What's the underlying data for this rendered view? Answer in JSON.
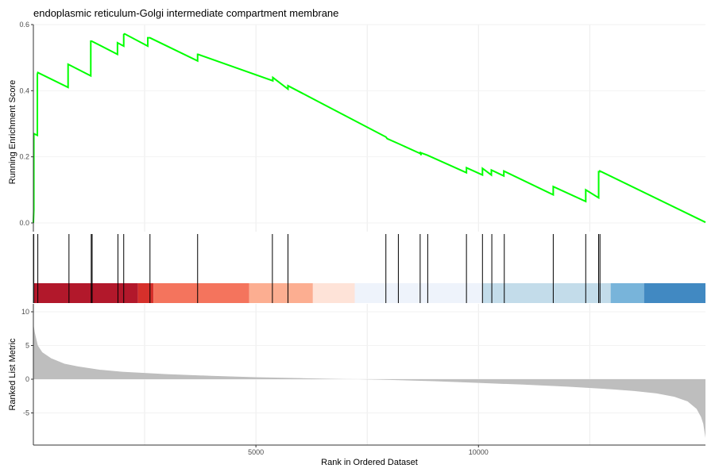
{
  "chart_data": {
    "type": "line",
    "title": "endoplasmic reticulum-Golgi intermediate compartment membrane",
    "xlabel": "Rank in Ordered Dataset",
    "xlim": [
      0,
      15100
    ],
    "x_ticks": [
      5000,
      10000
    ],
    "x_tick_labels": [
      "5000",
      "10000"
    ],
    "grid": true,
    "enrichment": {
      "ylabel": "Running Enrichment Score",
      "ylim": [
        0,
        0.6
      ],
      "y_ticks": [
        0,
        0.2,
        0.4,
        0.6
      ],
      "y_tick_labels": [
        "0.0",
        "0.2",
        "0.4",
        "0.6"
      ],
      "line_color": "#00FF00",
      "series": {
        "x": [
          0,
          10,
          10,
          90,
          90,
          100,
          100,
          780,
          780,
          1290,
          1290,
          1310,
          1310,
          1890,
          1890,
          2030,
          2030,
          2050,
          2050,
          2570,
          2570,
          2620,
          2620,
          3690,
          3690,
          3700,
          3700,
          5380,
          5380,
          5720,
          5720,
          7920,
          7920,
          7950,
          7950,
          8200,
          8200,
          8690,
          8690,
          8710,
          8710,
          8850,
          8850,
          9730,
          9730,
          10090,
          10090,
          10290,
          10290,
          10570,
          10570,
          11680,
          11680,
          12410,
          12410,
          12700,
          12700,
          12730,
          12730,
          15100
        ],
        "y": [
          0,
          0.04,
          0.27,
          0.265,
          0.45,
          0.455,
          0.455,
          0.41,
          0.48,
          0.445,
          0.55,
          0.55,
          0.55,
          0.51,
          0.545,
          0.535,
          0.57,
          0.572,
          0.572,
          0.535,
          0.56,
          0.56,
          0.56,
          0.49,
          0.51,
          0.51,
          0.51,
          0.43,
          0.44,
          0.405,
          0.415,
          0.26,
          0.26,
          0.255,
          0.255,
          0.24,
          0.24,
          0.21,
          0.215,
          0.205,
          0.212,
          0.205,
          0.205,
          0.152,
          0.167,
          0.145,
          0.165,
          0.145,
          0.16,
          0.142,
          0.157,
          0.085,
          0.11,
          0.065,
          0.1,
          0.076,
          0.155,
          0.155,
          0.157,
          0.002
        ]
      }
    },
    "hits": {
      "positions": [
        10,
        100,
        800,
        1300,
        1320,
        1900,
        2030,
        2620,
        3690,
        5370,
        5720,
        7920,
        8200,
        8690,
        8860,
        9730,
        10090,
        10300,
        10580,
        11680,
        12410,
        12700,
        12730
      ]
    },
    "ranking_band": {
      "color_blocks": [
        {
          "from": 0,
          "to": 2350,
          "color": "#B2182B"
        },
        {
          "from": 2350,
          "to": 2700,
          "color": "#D6302B"
        },
        {
          "from": 2700,
          "to": 4850,
          "color": "#F4745D"
        },
        {
          "from": 4850,
          "to": 6280,
          "color": "#FCAE91"
        },
        {
          "from": 6280,
          "to": 7220,
          "color": "#FEE3D8"
        },
        {
          "from": 7220,
          "to": 10100,
          "color": "#EEF3FB"
        },
        {
          "from": 10100,
          "to": 12970,
          "color": "#C3DCEA"
        },
        {
          "from": 12970,
          "to": 13720,
          "color": "#78B4DA"
        },
        {
          "from": 13720,
          "to": 15100,
          "color": "#4189C2"
        }
      ]
    },
    "ranked_metric": {
      "ylabel": "Ranked List Metric",
      "ylim": [
        -9.5,
        10.5
      ],
      "y_ticks": [
        -5,
        0,
        5,
        10
      ],
      "y_tick_labels": [
        "-5",
        "0",
        "5",
        "10"
      ],
      "fill_color": "#BEBEBE",
      "series": {
        "x": [
          0,
          30,
          100,
          200,
          400,
          700,
          1000,
          1500,
          2000,
          3000,
          4000,
          5000,
          6000,
          7000,
          7300,
          8000,
          9000,
          10000,
          11000,
          12000,
          13000,
          13500,
          14000,
          14400,
          14700,
          14900,
          15000,
          15050,
          15100
        ],
        "y": [
          8.2,
          7.0,
          5.0,
          4.0,
          3.1,
          2.3,
          1.9,
          1.4,
          1.1,
          0.75,
          0.5,
          0.3,
          0.16,
          0.02,
          0.0,
          -0.1,
          -0.3,
          -0.55,
          -0.8,
          -1.1,
          -1.5,
          -1.75,
          -2.1,
          -2.6,
          -3.3,
          -4.4,
          -5.6,
          -6.6,
          -8.7
        ]
      }
    }
  }
}
